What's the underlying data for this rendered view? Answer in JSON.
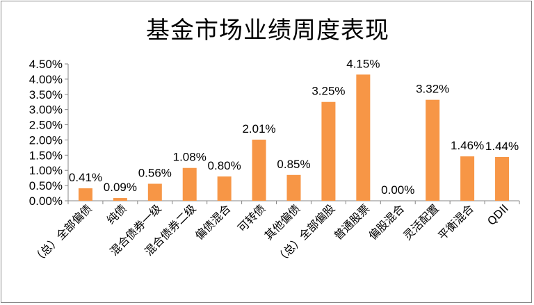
{
  "chart_data": {
    "type": "bar",
    "title": "基金市场业绩周度表现",
    "xlabel": "",
    "ylabel": "",
    "categories": [
      "（总）全部偏债",
      "纯债",
      "混合债券一级",
      "混合债券二级",
      "偏债混合",
      "可转债",
      "其他偏债",
      "（总）全部偏股",
      "普通股票",
      "偏股混合",
      "灵活配置",
      "平衡混合",
      "QDII"
    ],
    "values": [
      0.41,
      0.09,
      0.56,
      1.08,
      0.8,
      2.01,
      0.85,
      3.25,
      4.15,
      0.0,
      3.32,
      1.46,
      1.44
    ],
    "data_labels": [
      "0.41%",
      "0.09%",
      "0.56%",
      "1.08%",
      "0.80%",
      "2.01%",
      "0.85%",
      "3.25%",
      "4.15%",
      "0.00%",
      "3.32%",
      "1.46%",
      "1.44%"
    ],
    "yticks": [
      "0.00%",
      "0.50%",
      "1.00%",
      "1.50%",
      "2.00%",
      "2.50%",
      "3.00%",
      "3.50%",
      "4.00%",
      "4.50%"
    ],
    "ylim": [
      0,
      4.5
    ],
    "grid": false,
    "legend": "none",
    "bar_color": "#F79646"
  }
}
